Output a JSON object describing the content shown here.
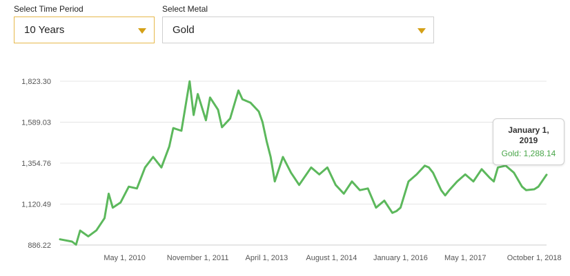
{
  "selectors": {
    "period_label": "Select Time Period",
    "period_value": "10 Years",
    "metal_label": "Select Metal",
    "metal_value": "Gold",
    "accent_color": "#d4a017"
  },
  "tooltip": {
    "date": "January 1, 2019",
    "series": "Gold",
    "value": "1,288.14",
    "text": "Gold: 1,288.14"
  },
  "chart_data": {
    "type": "line",
    "title": "",
    "xlabel": "",
    "ylabel": "",
    "line_color": "#5cb85c",
    "grid": true,
    "ylim": [
      886.22,
      1823.3
    ],
    "y_ticks": [
      886.22,
      1120.49,
      1354.76,
      1589.03,
      1823.3
    ],
    "y_tick_labels": [
      "886.22",
      "1,120.49",
      "1,354.76",
      "1,589.03",
      "1,823.30"
    ],
    "x_tick_labels": [
      "May 1, 2010",
      "November 1, 2011",
      "April 1, 2013",
      "August 1, 2014",
      "January 1, 2016",
      "May 1, 2017",
      "October 1, 2018"
    ],
    "x_tick_dates": [
      "2010-05-01",
      "2011-11-01",
      "2013-04-01",
      "2014-08-01",
      "2016-01-01",
      "2017-05-01",
      "2018-10-01"
    ],
    "xlim": [
      "2009-01-01",
      "2019-01-01"
    ],
    "series": [
      {
        "name": "Gold",
        "dates": [
          "2009-01-01",
          "2009-04-01",
          "2009-05-01",
          "2009-06-01",
          "2009-08-01",
          "2009-10-01",
          "2009-12-01",
          "2010-01-01",
          "2010-02-01",
          "2010-04-01",
          "2010-06-01",
          "2010-08-01",
          "2010-10-01",
          "2010-12-01",
          "2011-02-01",
          "2011-04-01",
          "2011-05-01",
          "2011-07-01",
          "2011-08-01",
          "2011-09-01",
          "2011-10-01",
          "2011-11-01",
          "2012-01-01",
          "2012-02-01",
          "2012-04-01",
          "2012-05-01",
          "2012-07-01",
          "2012-09-01",
          "2012-10-01",
          "2012-12-01",
          "2013-02-01",
          "2013-03-01",
          "2013-04-01",
          "2013-05-01",
          "2013-06-01",
          "2013-08-01",
          "2013-10-01",
          "2013-12-01",
          "2014-03-01",
          "2014-05-01",
          "2014-07-01",
          "2014-08-01",
          "2014-09-01",
          "2014-11-01",
          "2015-01-01",
          "2015-03-01",
          "2015-05-01",
          "2015-07-01",
          "2015-09-01",
          "2015-11-01",
          "2015-12-01",
          "2016-01-01",
          "2016-03-01",
          "2016-05-01",
          "2016-07-01",
          "2016-08-01",
          "2016-09-01",
          "2016-11-01",
          "2016-12-01",
          "2017-01-01",
          "2017-03-01",
          "2017-05-01",
          "2017-07-01",
          "2017-09-01",
          "2017-11-01",
          "2017-12-01",
          "2018-01-01",
          "2018-03-01",
          "2018-05-01",
          "2018-07-01",
          "2018-08-01",
          "2018-10-01",
          "2018-11-01",
          "2019-01-01"
        ],
        "values": [
          919,
          906,
          888,
          969,
          936,
          970,
          1040,
          1180,
          1100,
          1130,
          1220,
          1210,
          1330,
          1390,
          1330,
          1450,
          1555,
          1540,
          1680,
          1823,
          1630,
          1750,
          1600,
          1730,
          1660,
          1560,
          1610,
          1770,
          1720,
          1700,
          1650,
          1590,
          1480,
          1390,
          1250,
          1390,
          1300,
          1230,
          1330,
          1290,
          1330,
          1280,
          1230,
          1180,
          1250,
          1200,
          1210,
          1100,
          1140,
          1070,
          1080,
          1100,
          1250,
          1290,
          1340,
          1330,
          1300,
          1200,
          1170,
          1200,
          1250,
          1290,
          1250,
          1320,
          1270,
          1250,
          1330,
          1340,
          1300,
          1220,
          1200,
          1205,
          1220,
          1288.14
        ]
      }
    ]
  }
}
